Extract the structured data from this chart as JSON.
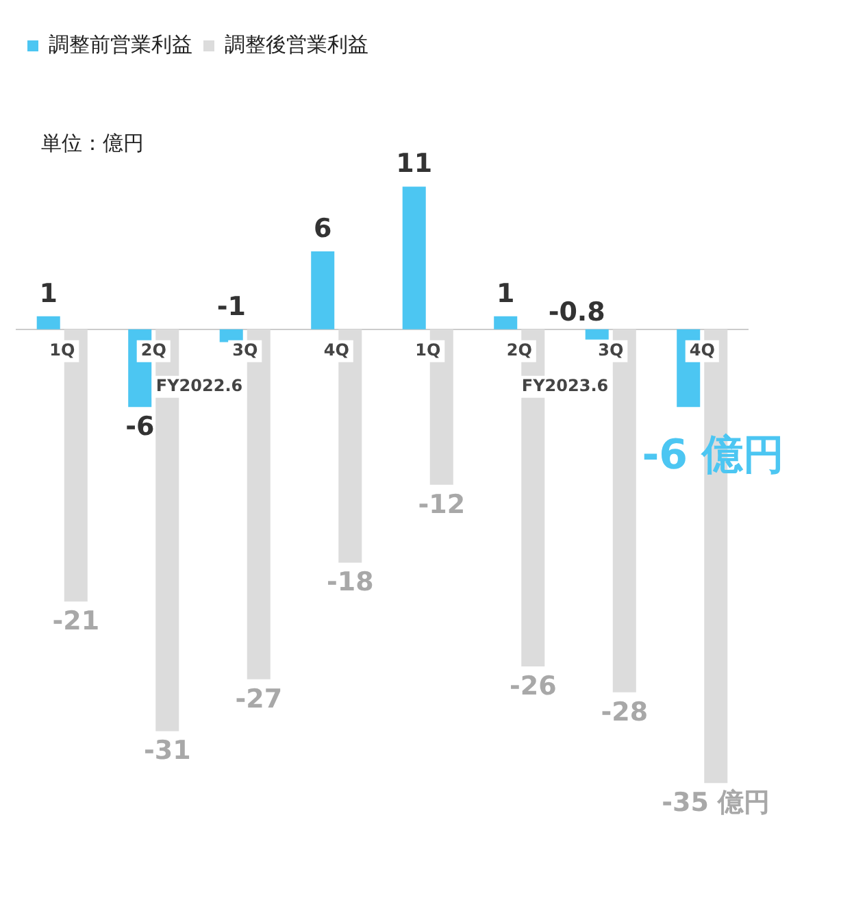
{
  "chart_data": {
    "type": "bar",
    "categories": [
      "1Q",
      "2Q",
      "3Q",
      "4Q",
      "1Q",
      "2Q",
      "3Q",
      "4Q"
    ],
    "series": [
      {
        "name": "調整前営業利益",
        "color": "#4cc6f2",
        "values": [
          1,
          -6,
          -1,
          6,
          11,
          1,
          -0.8,
          -6
        ],
        "value_labels": [
          "1",
          "-6",
          "-1",
          "6",
          "11",
          "1",
          "-0.8",
          "-6 億円"
        ]
      },
      {
        "name": "調整後営業利益",
        "color": "#dcdcdc",
        "values": [
          -21,
          -31,
          -27,
          -18,
          -12,
          -26,
          -28,
          -35
        ],
        "value_labels": [
          "-21",
          "-31",
          "-27",
          "-18",
          "-12",
          "-26",
          "-28",
          "-35 億円"
        ]
      }
    ],
    "annotations": [
      "単位：億円",
      "FY2022.6",
      "FY2023.6"
    ],
    "legend": "top left",
    "grid": false
  }
}
